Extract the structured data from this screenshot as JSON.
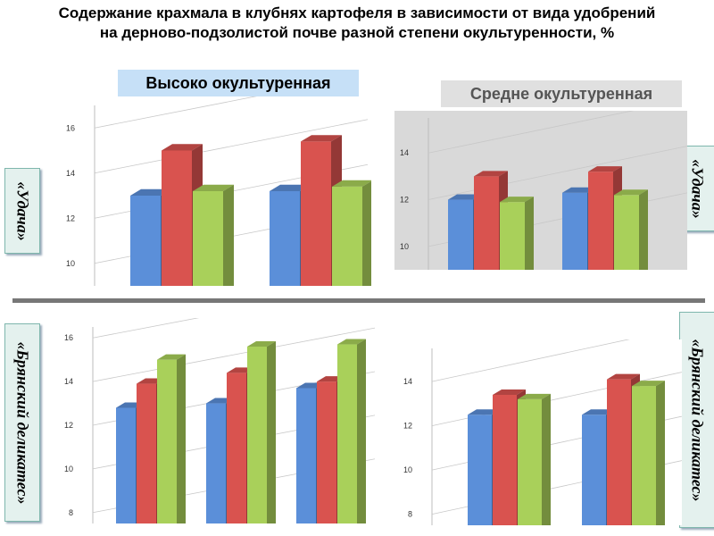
{
  "title": {
    "line1": "Содержание крахмала в клубнях картофеля в зависимости от вида удобрений",
    "line2": "на дерново-подзолистой почве разной степени окультуренности, %"
  },
  "column_titles": {
    "high": "Высоко окультуренная",
    "medium": "Средне окультуренная"
  },
  "varieties": {
    "udacha": "«Удача»",
    "bryansk": "«Брянский деликатес»"
  },
  "colors": {
    "blue": "#5b8fd9",
    "red": "#d9534f",
    "green": "#a9d05a"
  },
  "chart_data": [
    {
      "type": "bar",
      "series": [
        {
          "values": [
            13.0,
            13.2
          ]
        },
        {
          "values": [
            15.0,
            15.4
          ]
        },
        {
          "values": [
            13.2,
            13.4
          ]
        }
      ],
      "ylim": [
        9,
        17
      ],
      "yticks": [
        10,
        12,
        14,
        16
      ]
    },
    {
      "type": "bar",
      "series": [
        {
          "values": [
            12.0,
            12.3
          ]
        },
        {
          "values": [
            13.0,
            13.2
          ]
        },
        {
          "values": [
            11.9,
            12.2
          ]
        }
      ],
      "ylim": [
        9,
        15.5
      ],
      "yticks": [
        10,
        12,
        14
      ]
    },
    {
      "type": "bar",
      "series": [
        {
          "values": [
            12.8,
            13.0,
            13.7
          ]
        },
        {
          "values": [
            13.9,
            14.4,
            14.0
          ]
        },
        {
          "values": [
            15.0,
            15.6,
            15.7
          ]
        }
      ],
      "ylim": [
        7.5,
        16.5
      ],
      "yticks": [
        8,
        10,
        12,
        14,
        16
      ]
    },
    {
      "type": "bar",
      "series": [
        {
          "values": [
            12.5,
            12.5
          ]
        },
        {
          "values": [
            13.4,
            14.1
          ]
        },
        {
          "values": [
            13.2,
            13.8
          ]
        }
      ],
      "ylim": [
        7.5,
        15.5
      ],
      "yticks": [
        8,
        10,
        12,
        14
      ]
    }
  ]
}
